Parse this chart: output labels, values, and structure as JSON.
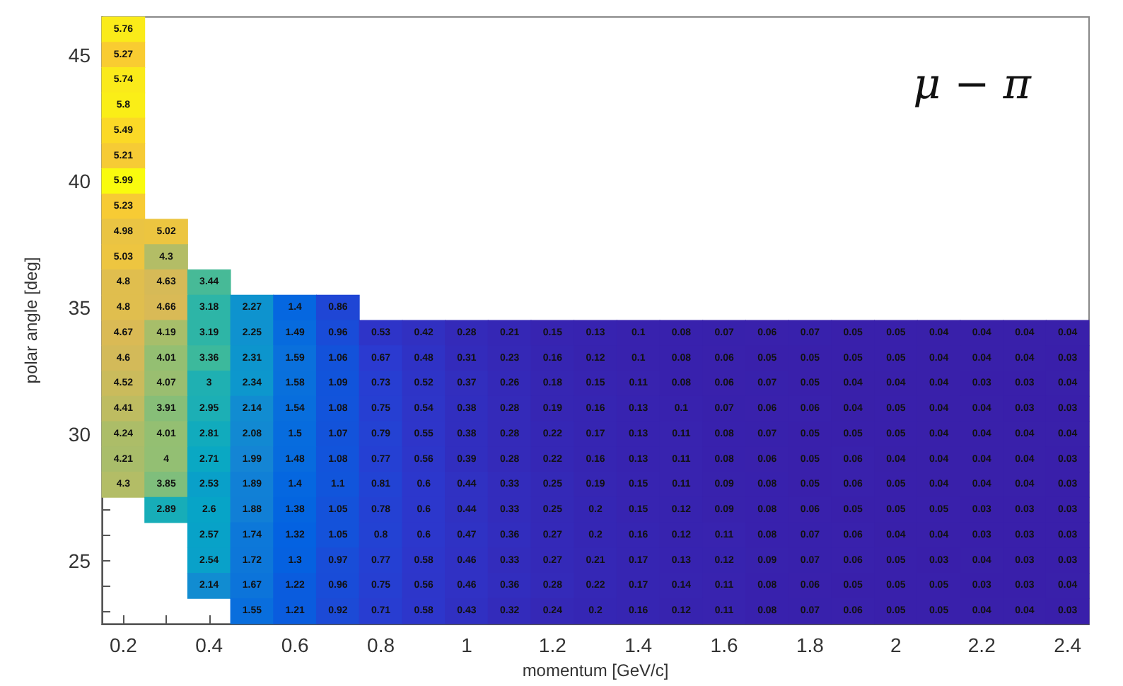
{
  "chart_data": {
    "type": "heatmap",
    "title": "μ − π",
    "xlabel": "momentum [GeV/c]",
    "ylabel": "polar angle [deg]",
    "data_labels": true,
    "categories": [
      "0.2",
      null,
      "0.4",
      null,
      "0.6",
      null,
      "0.8",
      null,
      "1",
      null,
      "1.2",
      null,
      "1.4",
      null,
      "1.6",
      null,
      "1.8",
      null,
      "2",
      null,
      "2.2",
      null,
      "2.4"
    ],
    "y_categories": [
      null,
      "45",
      null,
      null,
      null,
      null,
      "40",
      null,
      null,
      null,
      null,
      "35",
      null,
      null,
      null,
      null,
      "30",
      null,
      null,
      null,
      null,
      "25",
      null,
      null
    ],
    "cells": [
      [
        5.76,
        null,
        null,
        null,
        null,
        null,
        null,
        null,
        null,
        null,
        null,
        null,
        null,
        null,
        null,
        null,
        null,
        null,
        null,
        null,
        null,
        null,
        null
      ],
      [
        5.27,
        null,
        null,
        null,
        null,
        null,
        null,
        null,
        null,
        null,
        null,
        null,
        null,
        null,
        null,
        null,
        null,
        null,
        null,
        null,
        null,
        null,
        null
      ],
      [
        5.74,
        null,
        null,
        null,
        null,
        null,
        null,
        null,
        null,
        null,
        null,
        null,
        null,
        null,
        null,
        null,
        null,
        null,
        null,
        null,
        null,
        null,
        null
      ],
      [
        5.8,
        null,
        null,
        null,
        null,
        null,
        null,
        null,
        null,
        null,
        null,
        null,
        null,
        null,
        null,
        null,
        null,
        null,
        null,
        null,
        null,
        null,
        null
      ],
      [
        5.49,
        null,
        null,
        null,
        null,
        null,
        null,
        null,
        null,
        null,
        null,
        null,
        null,
        null,
        null,
        null,
        null,
        null,
        null,
        null,
        null,
        null,
        null
      ],
      [
        5.21,
        null,
        null,
        null,
        null,
        null,
        null,
        null,
        null,
        null,
        null,
        null,
        null,
        null,
        null,
        null,
        null,
        null,
        null,
        null,
        null,
        null,
        null
      ],
      [
        5.99,
        null,
        null,
        null,
        null,
        null,
        null,
        null,
        null,
        null,
        null,
        null,
        null,
        null,
        null,
        null,
        null,
        null,
        null,
        null,
        null,
        null,
        null
      ],
      [
        5.23,
        null,
        null,
        null,
        null,
        null,
        null,
        null,
        null,
        null,
        null,
        null,
        null,
        null,
        null,
        null,
        null,
        null,
        null,
        null,
        null,
        null,
        null
      ],
      [
        4.98,
        5.02,
        null,
        null,
        null,
        null,
        null,
        null,
        null,
        null,
        null,
        null,
        null,
        null,
        null,
        null,
        null,
        null,
        null,
        null,
        null,
        null,
        null
      ],
      [
        5.03,
        4.3,
        null,
        null,
        null,
        null,
        null,
        null,
        null,
        null,
        null,
        null,
        null,
        null,
        null,
        null,
        null,
        null,
        null,
        null,
        null,
        null,
        null
      ],
      [
        4.8,
        4.63,
        3.44,
        null,
        null,
        null,
        null,
        null,
        null,
        null,
        null,
        null,
        null,
        null,
        null,
        null,
        null,
        null,
        null,
        null,
        null,
        null,
        null
      ],
      [
        4.8,
        4.66,
        3.18,
        2.27,
        1.4,
        0.86,
        null,
        null,
        null,
        null,
        null,
        null,
        null,
        null,
        null,
        null,
        null,
        null,
        null,
        null,
        null,
        null,
        null
      ],
      [
        4.67,
        4.19,
        3.19,
        2.25,
        1.49,
        0.96,
        0.53,
        0.42,
        0.28,
        0.21,
        0.15,
        0.13,
        0.1,
        0.08,
        0.07,
        0.06,
        0.07,
        0.05,
        0.05,
        0.04,
        0.04,
        0.04,
        0.04
      ],
      [
        4.6,
        4.01,
        3.36,
        2.31,
        1.59,
        1.06,
        0.67,
        0.48,
        0.31,
        0.23,
        0.16,
        0.12,
        0.1,
        0.08,
        0.06,
        0.05,
        0.05,
        0.05,
        0.05,
        0.04,
        0.04,
        0.04,
        0.03
      ],
      [
        4.52,
        4.07,
        3,
        2.34,
        1.58,
        1.09,
        0.73,
        0.52,
        0.37,
        0.26,
        0.18,
        0.15,
        0.11,
        0.08,
        0.06,
        0.07,
        0.05,
        0.04,
        0.04,
        0.04,
        0.03,
        0.03,
        0.04
      ],
      [
        4.41,
        3.91,
        2.95,
        2.14,
        1.54,
        1.08,
        0.75,
        0.54,
        0.38,
        0.28,
        0.19,
        0.16,
        0.13,
        0.1,
        0.07,
        0.06,
        0.06,
        0.04,
        0.05,
        0.04,
        0.04,
        0.03,
        0.03
      ],
      [
        4.24,
        4.01,
        2.81,
        2.08,
        1.5,
        1.07,
        0.79,
        0.55,
        0.38,
        0.28,
        0.22,
        0.17,
        0.13,
        0.11,
        0.08,
        0.07,
        0.05,
        0.05,
        0.05,
        0.04,
        0.04,
        0.04,
        0.04
      ],
      [
        4.21,
        4,
        2.71,
        1.99,
        1.48,
        1.08,
        0.77,
        0.56,
        0.39,
        0.28,
        0.22,
        0.16,
        0.13,
        0.11,
        0.08,
        0.06,
        0.05,
        0.06,
        0.04,
        0.04,
        0.04,
        0.04,
        0.03
      ],
      [
        4.3,
        3.85,
        2.53,
        1.89,
        1.4,
        1.1,
        0.81,
        0.6,
        0.44,
        0.33,
        0.25,
        0.19,
        0.15,
        0.11,
        0.09,
        0.08,
        0.05,
        0.06,
        0.05,
        0.04,
        0.04,
        0.04,
        0.03
      ],
      [
        null,
        2.89,
        2.6,
        1.88,
        1.38,
        1.05,
        0.78,
        0.6,
        0.44,
        0.33,
        0.25,
        0.2,
        0.15,
        0.12,
        0.09,
        0.08,
        0.06,
        0.05,
        0.05,
        0.05,
        0.03,
        0.03,
        0.03
      ],
      [
        null,
        null,
        2.57,
        1.74,
        1.32,
        1.05,
        0.8,
        0.6,
        0.47,
        0.36,
        0.27,
        0.2,
        0.16,
        0.12,
        0.11,
        0.08,
        0.07,
        0.06,
        0.04,
        0.04,
        0.03,
        0.03,
        0.03
      ],
      [
        null,
        null,
        2.54,
        1.72,
        1.3,
        0.97,
        0.77,
        0.58,
        0.46,
        0.33,
        0.27,
        0.21,
        0.17,
        0.13,
        0.12,
        0.09,
        0.07,
        0.06,
        0.05,
        0.03,
        0.04,
        0.03,
        0.03
      ],
      [
        null,
        null,
        2.14,
        1.67,
        1.22,
        0.96,
        0.75,
        0.56,
        0.46,
        0.36,
        0.28,
        0.22,
        0.17,
        0.14,
        0.11,
        0.08,
        0.06,
        0.05,
        0.05,
        0.05,
        0.03,
        0.03,
        0.04
      ],
      [
        null,
        null,
        null,
        1.55,
        1.21,
        0.92,
        0.71,
        0.58,
        0.43,
        0.32,
        0.24,
        0.2,
        0.16,
        0.12,
        0.11,
        0.08,
        0.07,
        0.06,
        0.05,
        0.05,
        0.04,
        0.04,
        0.03
      ]
    ]
  }
}
